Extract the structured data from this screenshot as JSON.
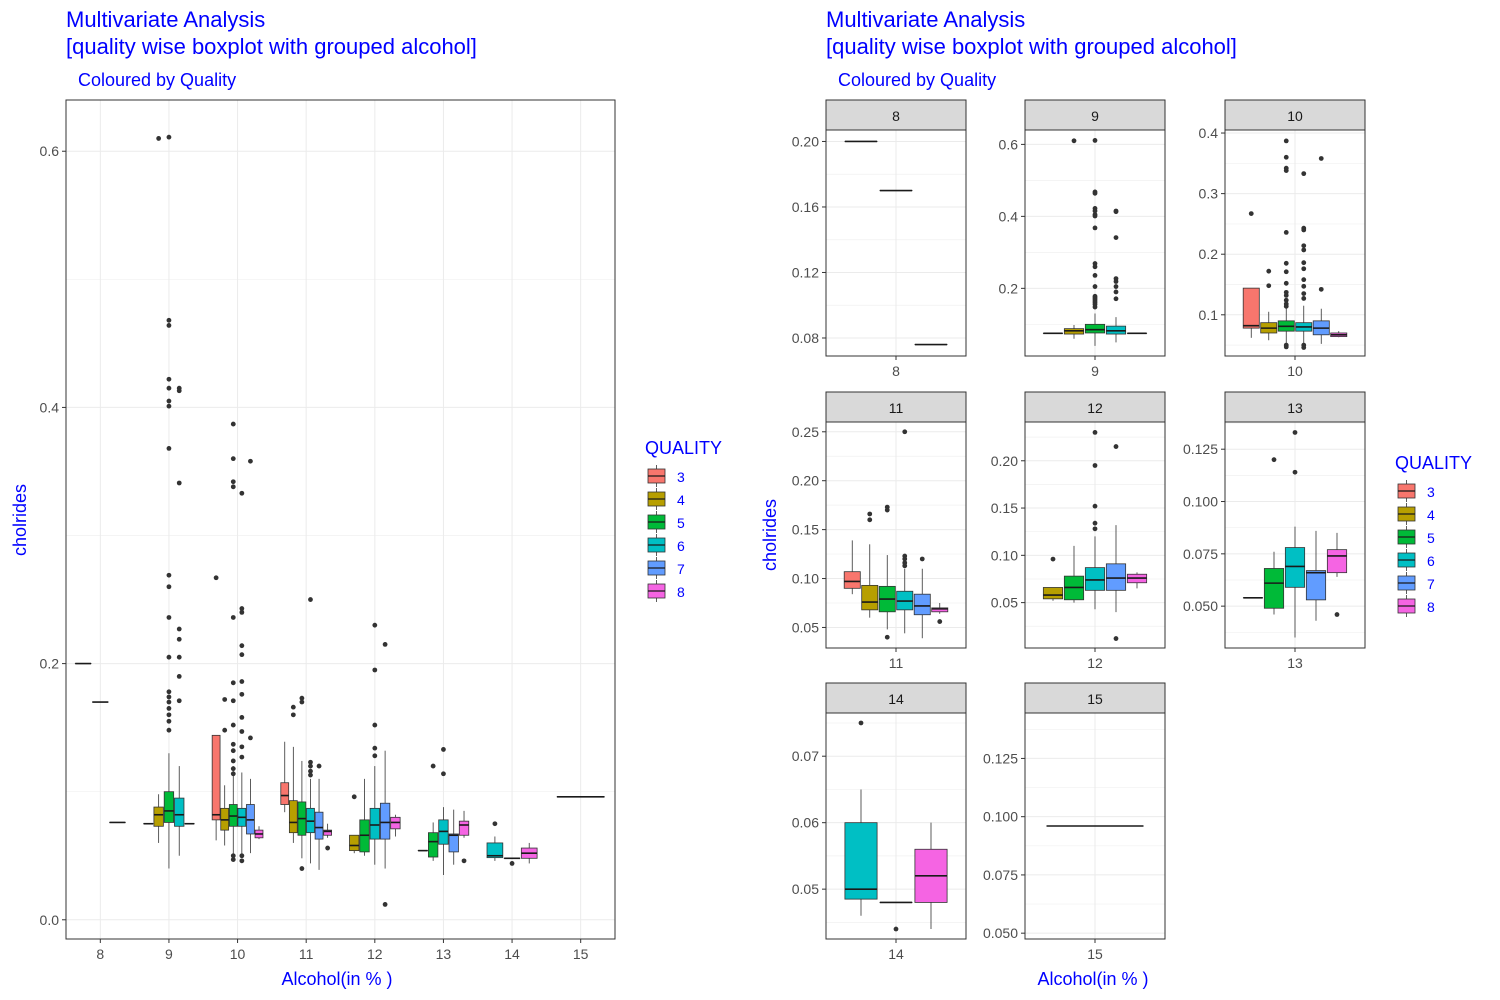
{
  "chart_data": [
    {
      "type": "boxplot",
      "title": "Multivariate Analysis",
      "title_line2": "[quality wise boxplot with grouped alcohol]",
      "subtitle": "Coloured by Quality",
      "xlabel": "Alcohol(in % )",
      "ylabel": "cholrides",
      "ylim": [
        -0.015,
        0.64
      ],
      "yticks": [
        0.0,
        0.2,
        0.4,
        0.6
      ],
      "ytick_labels": [
        "0.0",
        "0.2",
        "0.4",
        "0.6"
      ],
      "categories": [
        "8",
        "9",
        "10",
        "11",
        "12",
        "13",
        "14",
        "15"
      ],
      "legend": {
        "title": "QUALITY",
        "position": "right",
        "labels": [
          "3",
          "4",
          "5",
          "6",
          "7",
          "8"
        ]
      },
      "colors": {
        "3": "#F8766D",
        "4": "#B79F00",
        "5": "#00BA38",
        "6": "#00BFC4",
        "7": "#619CFF",
        "8": "#F564E3"
      },
      "boxes": [
        {
          "cat": "8",
          "q": "3",
          "min": 0.2,
          "q1": 0.2,
          "med": 0.2,
          "q3": 0.2,
          "max": 0.2,
          "out": []
        },
        {
          "cat": "8",
          "q": "4",
          "min": 0.17,
          "q1": 0.17,
          "med": 0.17,
          "q3": 0.17,
          "max": 0.17,
          "out": []
        },
        {
          "cat": "8",
          "q": "5",
          "min": 0.076,
          "q1": 0.076,
          "med": 0.076,
          "q3": 0.076,
          "max": 0.076,
          "out": []
        },
        {
          "cat": "9",
          "q": "3",
          "min": 0.075,
          "q1": 0.075,
          "med": 0.075,
          "q3": 0.075,
          "max": 0.075,
          "out": []
        },
        {
          "cat": "9",
          "q": "4",
          "min": 0.06,
          "q1": 0.073,
          "med": 0.082,
          "q3": 0.088,
          "max": 0.098,
          "out": [
            0.61
          ]
        },
        {
          "cat": "9",
          "q": "5",
          "min": 0.04,
          "q1": 0.076,
          "med": 0.085,
          "q3": 0.1,
          "max": 0.13,
          "out": [
            0.611,
            0.468,
            0.464,
            0.422,
            0.415,
            0.405,
            0.401,
            0.368,
            0.269,
            0.26,
            0.236,
            0.205,
            0.178,
            0.174,
            0.17,
            0.165,
            0.16,
            0.155,
            0.148
          ]
        },
        {
          "cat": "9",
          "q": "6",
          "min": 0.05,
          "q1": 0.073,
          "med": 0.082,
          "q3": 0.095,
          "max": 0.12,
          "out": [
            0.415,
            0.413,
            0.341,
            0.227,
            0.219,
            0.205,
            0.19,
            0.171
          ]
        },
        {
          "cat": "9",
          "q": "7",
          "min": 0.075,
          "q1": 0.075,
          "med": 0.075,
          "q3": 0.075,
          "max": 0.075,
          "out": []
        },
        {
          "cat": "10",
          "q": "3",
          "min": 0.062,
          "q1": 0.078,
          "med": 0.082,
          "q3": 0.144,
          "max": 0.144,
          "out": [
            0.267
          ]
        },
        {
          "cat": "10",
          "q": "4",
          "min": 0.058,
          "q1": 0.07,
          "med": 0.078,
          "q3": 0.087,
          "max": 0.105,
          "out": [
            0.172,
            0.148
          ]
        },
        {
          "cat": "10",
          "q": "5",
          "min": 0.048,
          "q1": 0.073,
          "med": 0.081,
          "q3": 0.09,
          "max": 0.12,
          "out": [
            0.387,
            0.36,
            0.342,
            0.338,
            0.236,
            0.185,
            0.171,
            0.152,
            0.137,
            0.132,
            0.124,
            0.118,
            0.114,
            0.05,
            0.047
          ]
        },
        {
          "cat": "10",
          "q": "6",
          "min": 0.05,
          "q1": 0.073,
          "med": 0.08,
          "q3": 0.087,
          "max": 0.115,
          "out": [
            0.333,
            0.243,
            0.24,
            0.214,
            0.207,
            0.186,
            0.176,
            0.158,
            0.147,
            0.135,
            0.127,
            0.05,
            0.046
          ]
        },
        {
          "cat": "10",
          "q": "7",
          "min": 0.052,
          "q1": 0.067,
          "med": 0.078,
          "q3": 0.09,
          "max": 0.11,
          "out": [
            0.358,
            0.142
          ]
        },
        {
          "cat": "10",
          "q": "8",
          "min": 0.063,
          "q1": 0.064,
          "med": 0.067,
          "q3": 0.07,
          "max": 0.073,
          "out": []
        },
        {
          "cat": "11",
          "q": "3",
          "min": 0.084,
          "q1": 0.09,
          "med": 0.097,
          "q3": 0.107,
          "max": 0.139,
          "out": []
        },
        {
          "cat": "11",
          "q": "4",
          "min": 0.06,
          "q1": 0.068,
          "med": 0.076,
          "q3": 0.093,
          "max": 0.135,
          "out": [
            0.166,
            0.16
          ]
        },
        {
          "cat": "11",
          "q": "5",
          "min": 0.048,
          "q1": 0.066,
          "med": 0.079,
          "q3": 0.092,
          "max": 0.124,
          "out": [
            0.173,
            0.17,
            0.04
          ]
        },
        {
          "cat": "11",
          "q": "6",
          "min": 0.044,
          "q1": 0.068,
          "med": 0.077,
          "q3": 0.087,
          "max": 0.11,
          "out": [
            0.25,
            0.123,
            0.12,
            0.116,
            0.113
          ]
        },
        {
          "cat": "11",
          "q": "7",
          "min": 0.039,
          "q1": 0.063,
          "med": 0.072,
          "q3": 0.084,
          "max": 0.11,
          "out": [
            0.12
          ]
        },
        {
          "cat": "11",
          "q": "8",
          "min": 0.064,
          "q1": 0.066,
          "med": 0.069,
          "q3": 0.07,
          "max": 0.075,
          "out": [
            0.056
          ]
        },
        {
          "cat": "12",
          "q": "4",
          "min": 0.052,
          "q1": 0.054,
          "med": 0.058,
          "q3": 0.066,
          "max": 0.066,
          "out": [
            0.096
          ]
        },
        {
          "cat": "12",
          "q": "5",
          "min": 0.05,
          "q1": 0.053,
          "med": 0.066,
          "q3": 0.078,
          "max": 0.11,
          "out": []
        },
        {
          "cat": "12",
          "q": "6",
          "min": 0.043,
          "q1": 0.063,
          "med": 0.074,
          "q3": 0.087,
          "max": 0.12,
          "out": [
            0.23,
            0.195,
            0.152,
            0.134,
            0.128
          ]
        },
        {
          "cat": "12",
          "q": "7",
          "min": 0.04,
          "q1": 0.063,
          "med": 0.076,
          "q3": 0.091,
          "max": 0.132,
          "out": [
            0.215,
            0.012
          ]
        },
        {
          "cat": "12",
          "q": "8",
          "min": 0.065,
          "q1": 0.071,
          "med": 0.076,
          "q3": 0.08,
          "max": 0.082,
          "out": []
        },
        {
          "cat": "13",
          "q": "4",
          "min": 0.054,
          "q1": 0.054,
          "med": 0.054,
          "q3": 0.054,
          "max": 0.054,
          "out": []
        },
        {
          "cat": "13",
          "q": "5",
          "min": 0.046,
          "q1": 0.049,
          "med": 0.061,
          "q3": 0.068,
          "max": 0.076,
          "out": [
            0.12
          ]
        },
        {
          "cat": "13",
          "q": "6",
          "min": 0.035,
          "q1": 0.059,
          "med": 0.069,
          "q3": 0.078,
          "max": 0.088,
          "out": [
            0.133,
            0.114
          ]
        },
        {
          "cat": "13",
          "q": "7",
          "min": 0.043,
          "q1": 0.053,
          "med": 0.066,
          "q3": 0.067,
          "max": 0.086,
          "out": []
        },
        {
          "cat": "13",
          "q": "8",
          "min": 0.064,
          "q1": 0.066,
          "med": 0.074,
          "q3": 0.077,
          "max": 0.085,
          "out": [
            0.046
          ]
        },
        {
          "cat": "14",
          "q": "6",
          "min": 0.046,
          "q1": 0.0485,
          "med": 0.05,
          "q3": 0.06,
          "max": 0.065,
          "out": [
            0.075
          ]
        },
        {
          "cat": "14",
          "q": "7",
          "min": 0.048,
          "q1": 0.048,
          "med": 0.048,
          "q3": 0.048,
          "max": 0.048,
          "out": [
            0.044
          ]
        },
        {
          "cat": "14",
          "q": "8",
          "min": 0.044,
          "q1": 0.048,
          "med": 0.052,
          "q3": 0.056,
          "max": 0.06,
          "out": []
        },
        {
          "cat": "15",
          "q": "6",
          "min": 0.096,
          "q1": 0.096,
          "med": 0.096,
          "q3": 0.096,
          "max": 0.096,
          "out": []
        }
      ]
    },
    {
      "type": "boxplot-facet",
      "title": "Multivariate Analysis",
      "title_line2": "[quality wise boxplot with grouped alcohol]",
      "subtitle": "Coloured by Quality",
      "xlabel": "Alcohol(in % )",
      "ylabel": "cholrides",
      "legend": {
        "title": "QUALITY",
        "position": "right",
        "labels": [
          "3",
          "4",
          "5",
          "6",
          "7",
          "8"
        ]
      },
      "facets": [
        {
          "label": "8",
          "ylim": [
            0.069,
            0.207
          ],
          "yticks": [
            0.08,
            0.12,
            0.16,
            0.2
          ],
          "ytick_labels": [
            "0.08",
            "0.12",
            "0.16",
            "0.20"
          ]
        },
        {
          "label": "9",
          "ylim": [
            0.012,
            0.64
          ],
          "yticks": [
            0.2,
            0.4,
            0.6
          ],
          "ytick_labels": [
            "0.2",
            "0.4",
            "0.6"
          ]
        },
        {
          "label": "10",
          "ylim": [
            0.032,
            0.405
          ],
          "yticks": [
            0.1,
            0.2,
            0.3,
            0.4
          ],
          "ytick_labels": [
            "0.1",
            "0.2",
            "0.3",
            "0.4"
          ]
        },
        {
          "label": "11",
          "ylim": [
            0.029,
            0.26
          ],
          "yticks": [
            0.05,
            0.1,
            0.15,
            0.2,
            0.25
          ],
          "ytick_labels": [
            "0.05",
            "0.10",
            "0.15",
            "0.20",
            "0.25"
          ]
        },
        {
          "label": "12",
          "ylim": [
            0.002,
            0.241
          ],
          "yticks": [
            0.05,
            0.1,
            0.15,
            0.2
          ],
          "ytick_labels": [
            "0.05",
            "0.10",
            "0.15",
            "0.20"
          ]
        },
        {
          "label": "13",
          "ylim": [
            0.03,
            0.138
          ],
          "yticks": [
            0.05,
            0.075,
            0.1,
            0.125
          ],
          "ytick_labels": [
            "0.050",
            "0.075",
            "0.100",
            "0.125"
          ]
        },
        {
          "label": "14",
          "ylim": [
            0.0425,
            0.0765
          ],
          "yticks": [
            0.05,
            0.06,
            0.07
          ],
          "ytick_labels": [
            "0.05",
            "0.06",
            "0.07"
          ]
        },
        {
          "label": "15",
          "ylim": [
            0.0475,
            0.1445
          ],
          "yticks": [
            0.05,
            0.075,
            0.1,
            0.125
          ],
          "ytick_labels": [
            "0.050",
            "0.075",
            "0.100",
            "0.125"
          ]
        }
      ]
    }
  ]
}
